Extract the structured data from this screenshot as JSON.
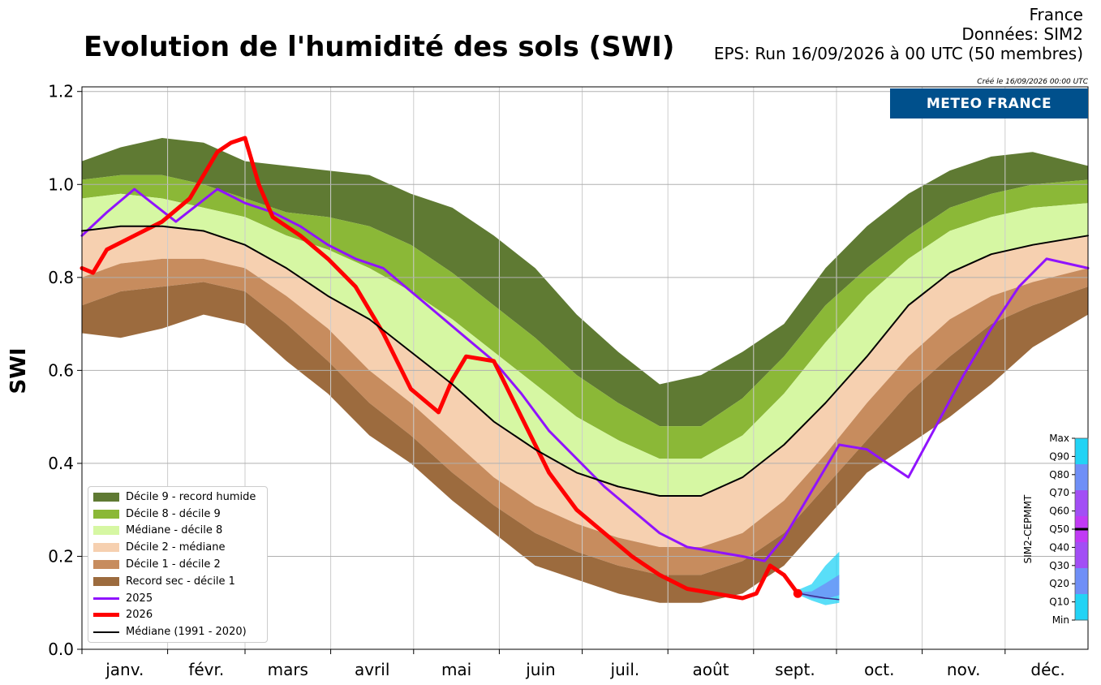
{
  "header": {
    "title": "Evolution de l'humidité des sols (SWI)",
    "region": "France",
    "data_source": "Données: SIM2",
    "run_info": "EPS: Run 16/09/2026 à 00 UTC (50 membres)",
    "created": "Créé le 16/09/2026 00:00 UTC",
    "logo_text": "METEO FRANCE"
  },
  "percentile_scale": {
    "label": "SIM2-CEPMMT",
    "ticks": [
      "Max",
      "Q90",
      "Q80",
      "Q70",
      "Q60",
      "Q50",
      "Q40",
      "Q30",
      "Q20",
      "Q10",
      "Min"
    ],
    "current_level": "Q50",
    "colors": [
      "#22d3f5",
      "#6f8ff7",
      "#a24ef5",
      "#c13af5",
      "#a24ef5",
      "#6f8ff7",
      "#22d3f5"
    ]
  },
  "legend": {
    "items": [
      {
        "label": "Décile 9 - record humide",
        "type": "band",
        "color": "#5f7a33"
      },
      {
        "label": "Décile 8 - décile 9",
        "type": "band",
        "color": "#8bb837"
      },
      {
        "label": "Médiane - décile 8",
        "type": "band",
        "color": "#d6f7a3"
      },
      {
        "label": "Décile 2 - médiane",
        "type": "band",
        "color": "#f6d0b0"
      },
      {
        "label": "Décile 1 - décile 2",
        "type": "band",
        "color": "#c78c5e"
      },
      {
        "label": "Record sec - décile 1",
        "type": "band",
        "color": "#9c6b3e"
      },
      {
        "label": "2025",
        "type": "line",
        "color": "#9013fe"
      },
      {
        "label": "2026",
        "type": "line",
        "color": "#ff0000"
      },
      {
        "label": "Médiane (1991 - 2020)",
        "type": "line",
        "color": "#000000"
      }
    ]
  },
  "chart_data": {
    "type": "area",
    "ylabel": "SWI",
    "xlabel": "",
    "ylim": [
      0,
      1.2
    ],
    "yticks": [
      "0.0",
      "0.2",
      "0.4",
      "0.6",
      "0.8",
      "1.0",
      "1.2"
    ],
    "x_unit": "day of year",
    "xlim": [
      1,
      365
    ],
    "months": [
      "janv.",
      "févr.",
      "mars",
      "avril",
      "mai",
      "juin",
      "juil.",
      "août",
      "sept.",
      "oct.",
      "nov.",
      "déc."
    ],
    "grid": true,
    "legend_position": "lower-left",
    "x": [
      1,
      15,
      30,
      45,
      60,
      75,
      90,
      105,
      120,
      135,
      150,
      165,
      180,
      195,
      210,
      225,
      240,
      255,
      270,
      285,
      300,
      315,
      330,
      345,
      365
    ],
    "bands": {
      "record_sec": [
        0.68,
        0.67,
        0.69,
        0.72,
        0.7,
        0.62,
        0.55,
        0.46,
        0.4,
        0.32,
        0.25,
        0.18,
        0.15,
        0.12,
        0.1,
        0.1,
        0.12,
        0.18,
        0.28,
        0.38,
        0.44,
        0.5,
        0.57,
        0.65,
        0.72
      ],
      "decile_1": [
        0.74,
        0.77,
        0.78,
        0.79,
        0.77,
        0.7,
        0.62,
        0.53,
        0.46,
        0.38,
        0.31,
        0.25,
        0.21,
        0.18,
        0.16,
        0.16,
        0.19,
        0.25,
        0.35,
        0.45,
        0.55,
        0.63,
        0.7,
        0.74,
        0.78
      ],
      "decile_2": [
        0.8,
        0.83,
        0.84,
        0.84,
        0.82,
        0.76,
        0.69,
        0.6,
        0.53,
        0.45,
        0.37,
        0.31,
        0.27,
        0.24,
        0.22,
        0.22,
        0.25,
        0.32,
        0.42,
        0.53,
        0.63,
        0.71,
        0.76,
        0.79,
        0.82
      ],
      "median_band": [
        0.9,
        0.91,
        0.91,
        0.9,
        0.87,
        0.82,
        0.76,
        0.71,
        0.64,
        0.57,
        0.49,
        0.43,
        0.38,
        0.35,
        0.33,
        0.33,
        0.37,
        0.44,
        0.53,
        0.63,
        0.74,
        0.81,
        0.85,
        0.87,
        0.89
      ],
      "decile_8": [
        0.97,
        0.98,
        0.97,
        0.95,
        0.93,
        0.89,
        0.86,
        0.82,
        0.77,
        0.71,
        0.64,
        0.57,
        0.5,
        0.45,
        0.41,
        0.41,
        0.46,
        0.55,
        0.66,
        0.76,
        0.84,
        0.9,
        0.93,
        0.95,
        0.96
      ],
      "decile_9": [
        1.01,
        1.02,
        1.02,
        1.0,
        0.97,
        0.94,
        0.93,
        0.91,
        0.87,
        0.81,
        0.74,
        0.67,
        0.59,
        0.53,
        0.48,
        0.48,
        0.54,
        0.63,
        0.74,
        0.82,
        0.89,
        0.95,
        0.98,
        1.0,
        1.01
      ],
      "record_humide": [
        1.05,
        1.08,
        1.1,
        1.09,
        1.05,
        1.04,
        1.03,
        1.02,
        0.98,
        0.95,
        0.89,
        0.82,
        0.72,
        0.64,
        0.57,
        0.59,
        0.64,
        0.7,
        0.82,
        0.91,
        0.98,
        1.03,
        1.06,
        1.07,
        1.04
      ]
    },
    "series": [
      {
        "name": "2025",
        "x": [
          1,
          10,
          20,
          35,
          50,
          60,
          70,
          80,
          90,
          100,
          110,
          120,
          130,
          140,
          150,
          160,
          170,
          180,
          190,
          200,
          210,
          220,
          230,
          240,
          248,
          255,
          265,
          275,
          285,
          290,
          300,
          310,
          320,
          330,
          340,
          350,
          365
        ],
        "values": [
          0.89,
          0.94,
          0.99,
          0.92,
          0.99,
          0.96,
          0.94,
          0.91,
          0.87,
          0.84,
          0.82,
          0.77,
          0.72,
          0.67,
          0.62,
          0.55,
          0.47,
          0.41,
          0.35,
          0.3,
          0.25,
          0.22,
          0.21,
          0.2,
          0.19,
          0.24,
          0.34,
          0.44,
          0.43,
          0.41,
          0.37,
          0.48,
          0.59,
          0.69,
          0.78,
          0.84,
          0.82
        ]
      },
      {
        "name": "2026",
        "x": [
          1,
          5,
          10,
          20,
          30,
          40,
          50,
          55,
          60,
          65,
          70,
          80,
          90,
          100,
          110,
          120,
          130,
          135,
          140,
          150,
          160,
          170,
          180,
          190,
          200,
          210,
          220,
          230,
          240,
          245,
          250,
          255,
          260
        ],
        "values": [
          0.82,
          0.81,
          0.86,
          0.89,
          0.92,
          0.97,
          1.07,
          1.09,
          1.1,
          1.0,
          0.93,
          0.89,
          0.84,
          0.78,
          0.68,
          0.56,
          0.51,
          0.58,
          0.63,
          0.62,
          0.5,
          0.38,
          0.3,
          0.25,
          0.2,
          0.16,
          0.13,
          0.12,
          0.11,
          0.12,
          0.18,
          0.16,
          0.12
        ]
      },
      {
        "name": "Médiane (1991 - 2020)",
        "x": [
          1,
          15,
          30,
          45,
          60,
          75,
          90,
          105,
          120,
          135,
          150,
          165,
          180,
          195,
          210,
          225,
          240,
          255,
          270,
          285,
          300,
          315,
          330,
          345,
          365
        ],
        "values": [
          0.9,
          0.91,
          0.91,
          0.9,
          0.87,
          0.82,
          0.76,
          0.71,
          0.64,
          0.57,
          0.49,
          0.43,
          0.38,
          0.35,
          0.33,
          0.33,
          0.37,
          0.44,
          0.53,
          0.63,
          0.74,
          0.81,
          0.85,
          0.87,
          0.89
        ]
      }
    ],
    "forecast": {
      "x": [
        259,
        265,
        270,
        275
      ],
      "min": [
        0.12,
        0.105,
        0.095,
        0.1
      ],
      "max": [
        0.125,
        0.14,
        0.18,
        0.21
      ],
      "median": [
        0.122,
        0.115,
        0.11,
        0.107
      ]
    }
  }
}
